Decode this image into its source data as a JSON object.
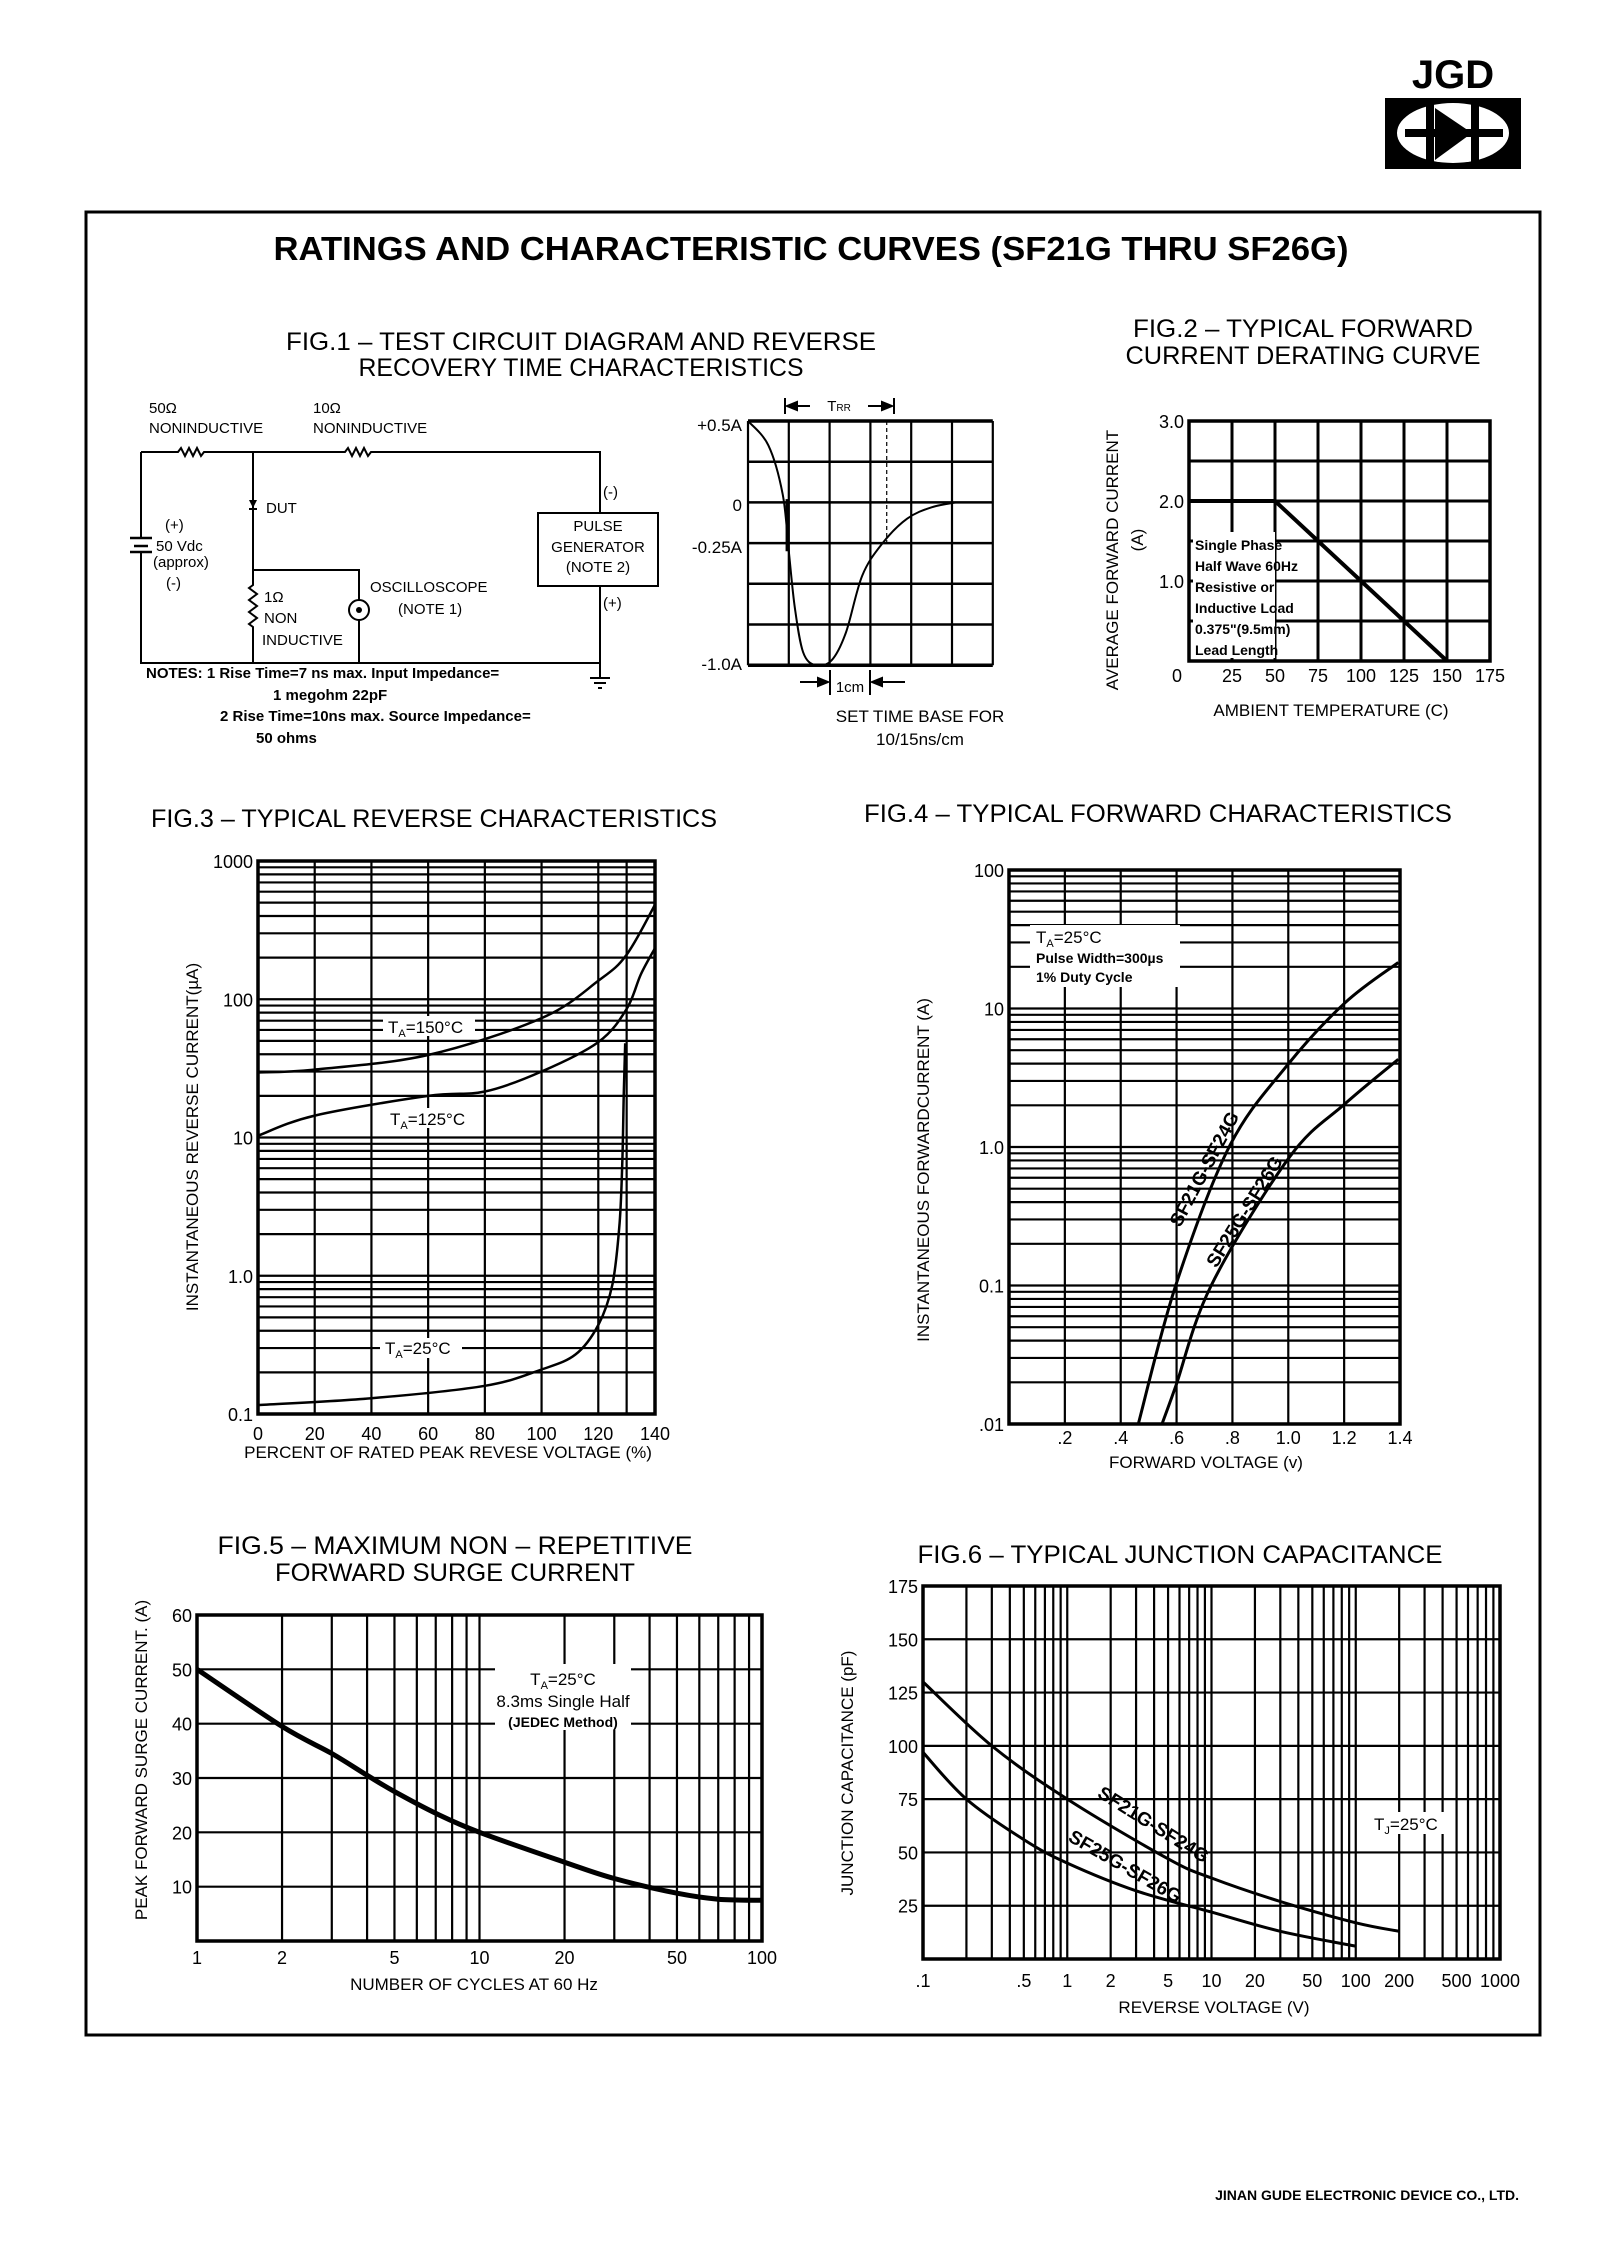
{
  "header": {
    "logo_text": "JGD",
    "title": "RATINGS AND CHARACTERISTIC CURVES",
    "title_paren": "(SF21G THRU SF26G)"
  },
  "footer": "JINAN GUDE ELECTRONIC DEVICE CO., LTD.",
  "fig1": {
    "title": [
      "FIG.1 – TEST CIRCUIT DIAGRAM AND REVERSE",
      "RECOVERY TIME CHARACTERISTICS"
    ],
    "r1_value": "50Ω",
    "r1_type": "NONINDUCTIVE",
    "r2_value": "10Ω",
    "r2_type": "NONINDUCTIVE",
    "dut": "DUT",
    "battery": [
      "(+)",
      "50 Vdc",
      "(approx)",
      "(-)"
    ],
    "r3": [
      "1Ω",
      "NON",
      "INDUCTIVE"
    ],
    "scope": [
      "OSCILLOSCOPE",
      "(NOTE 1)"
    ],
    "pulse": [
      "PULSE",
      "GENERATOR",
      "(NOTE 2)"
    ],
    "pulse_minus": "(-)",
    "pulse_plus": "(+)",
    "notes": [
      "NOTES: 1 Rise Time=7 ns max. Input Impedance=",
      "1 megohm 22pF",
      "2  Rise Time=10ns max. Source Impedance=",
      "50 ohms"
    ],
    "wave_labels": [
      "+0.5A",
      "0",
      "-0.25A",
      "-1.0A"
    ],
    "trr_t": "T",
    "trr_s": "RR",
    "cm": "1cm",
    "timebase": [
      "SET TIME BASE FOR",
      "10/15ns/cm"
    ]
  },
  "chart_data": [
    {
      "type": "line",
      "title": [
        "FIG.2 – TYPICAL FORWARD",
        "CURRENT DERATING CURVE"
      ],
      "xlabel": "AMBIENT TEMPERATURE (C)",
      "ylabel": [
        "AVERAGE FORWARD CURRENT",
        "(A)"
      ],
      "xscale": "linear",
      "yscale": "linear",
      "xlim": [
        0,
        175
      ],
      "ylim": [
        0,
        3
      ],
      "x_ticks": [
        0,
        25,
        50,
        75,
        100,
        125,
        150,
        175
      ],
      "x_tick_labels": [
        "0",
        "25",
        "50",
        "75",
        "100",
        "125",
        "150",
        "175"
      ],
      "y_ticks": [
        1,
        2,
        3
      ],
      "y_tick_labels": [
        "1.0",
        "2.0",
        "3.0"
      ],
      "grid": true,
      "series": [
        {
          "name": "Derating",
          "x": [
            0,
            50,
            150
          ],
          "y": [
            2.0,
            2.0,
            0
          ]
        }
      ],
      "annotation": [
        "Single Phase",
        "Half Wave 60Hz",
        "Resistive or",
        "Inductive Load",
        "0.375\"(9.5mm)",
        "Lead Length"
      ]
    },
    {
      "type": "line",
      "title": [
        "FIG.3 – TYPICAL REVERSE CHARACTERISTICS"
      ],
      "xlabel": "PERCENT OF RATED PEAK REVESE VOLTAGE (%)",
      "ylabel": [
        "INSTANTANEOUS REVERSE CURRENT(µA)"
      ],
      "xscale": "linear",
      "yscale": "log",
      "xlim": [
        0,
        140
      ],
      "ylim": [
        0.1,
        1000
      ],
      "x_ticks": [
        0,
        20,
        40,
        60,
        80,
        100,
        120,
        140
      ],
      "x_tick_labels": [
        "0",
        "20",
        "40",
        "60",
        "80",
        "100",
        "120",
        "140"
      ],
      "y_ticks": [
        0.1,
        1,
        10,
        100,
        1000
      ],
      "y_tick_labels": [
        "0.1",
        "1.0",
        "10",
        "100",
        "1000"
      ],
      "grid": true,
      "series": [
        {
          "name": "TA=150°C",
          "label_t": "T",
          "label_s": "A",
          "label_r": "=150°C",
          "x": [
            0,
            20,
            60,
            100,
            120,
            130,
            140
          ],
          "y": [
            29.5,
            31,
            39.5,
            73,
            136,
            210,
            483
          ]
        },
        {
          "name": "TA=125°C",
          "label_t": "T",
          "label_s": "A",
          "label_r": "=125°C",
          "x": [
            0,
            20,
            60,
            80,
            100,
            120,
            130,
            135,
            140
          ],
          "y": [
            10.3,
            14.4,
            20,
            21.5,
            30,
            49,
            85,
            151,
            234
          ]
        },
        {
          "name": "TA=25°C",
          "label_t": "T",
          "label_s": "A",
          "label_r": "=25°C",
          "x": [
            0,
            40,
            80,
            100,
            112,
            120,
            125,
            127.5,
            128.5,
            129,
            129.5
          ],
          "y": [
            0.116,
            0.13,
            0.16,
            0.21,
            0.27,
            0.44,
            0.87,
            2.4,
            7,
            21,
            48
          ]
        }
      ]
    },
    {
      "type": "line",
      "title": [
        "FIG.4 –  TYPICAL FORWARD CHARACTERISTICS"
      ],
      "xlabel": "FORWARD VOLTAGE (v)",
      "ylabel": [
        "INSTANTANEOUS FORWARDCURRENT (A)"
      ],
      "xscale": "linear",
      "yscale": "log",
      "xlim": [
        0,
        1.4
      ],
      "ylim": [
        0.01,
        100
      ],
      "x_ticks": [
        0.2,
        0.4,
        0.6,
        0.8,
        1.0,
        1.2,
        1.4
      ],
      "x_tick_labels": [
        ".2",
        ".4",
        ".6",
        ".8",
        "1.0",
        "1.2",
        "1.4"
      ],
      "y_ticks": [
        0.01,
        0.1,
        1,
        10,
        100
      ],
      "y_tick_labels": [
        ".01",
        "0.1",
        "1.0",
        "10",
        "100"
      ],
      "grid": true,
      "series": [
        {
          "name": "SF21G-SF24G",
          "x": [
            0.463,
            0.597,
            0.788,
            0.992,
            1.203,
            1.394
          ],
          "y": [
            0.01,
            0.1,
            1.0,
            3.8,
            11,
            21.5
          ]
        },
        {
          "name": "SF25G-SF26G",
          "x": [
            0.548,
            0.597,
            0.724,
            1.005,
            1.203,
            1.394
          ],
          "y": [
            0.01,
            0.0187,
            0.1,
            0.85,
            2.05,
            4.3
          ]
        }
      ],
      "annotation": {
        "t": "T",
        "s": "A",
        "r": "=25°C",
        "line2": "Pulse Width=300µs",
        "line3": "1% Duty Cycle"
      }
    },
    {
      "type": "line",
      "title": [
        "FIG.5 – MAXIMUM NON – REPETITIVE",
        "FORWARD SURGE CURRENT"
      ],
      "xlabel": "NUMBER OF CYCLES AT 60 Hz",
      "ylabel": [
        "PEAK FORWARD SURGE CURRENT. (A)"
      ],
      "xscale": "log",
      "yscale": "linear",
      "xlim": [
        1,
        100
      ],
      "ylim": [
        0,
        60
      ],
      "x_ticks": [
        1,
        2,
        5,
        10,
        20,
        50,
        100
      ],
      "x_tick_labels": [
        "1",
        "2",
        "5",
        "10",
        "20",
        "50",
        "100"
      ],
      "y_ticks": [
        10,
        20,
        30,
        40,
        50,
        60
      ],
      "y_tick_labels": [
        "10",
        "20",
        "30",
        "40",
        "50",
        "60"
      ],
      "grid": true,
      "series": [
        {
          "name": "Surge",
          "x": [
            1,
            2,
            3,
            4,
            5,
            7,
            10,
            20,
            30,
            50,
            70,
            100
          ],
          "y": [
            50,
            39.5,
            34.5,
            30.5,
            27.5,
            23.5,
            20,
            14.5,
            11.5,
            8.8,
            7.7,
            7.5
          ]
        }
      ],
      "annotation": {
        "t": "T",
        "s": "A",
        "r": "=25°C",
        "line2": "8.3ms Single Half",
        "line3": "(JEDEC Method)"
      }
    },
    {
      "type": "line",
      "title": [
        "FIG.6 – TYPICAL JUNCTION CAPACITANCE"
      ],
      "xlabel": "REVERSE VOLTAGE (V)",
      "ylabel": [
        "JUNCTION CAPACITANCE (pF)"
      ],
      "xscale": "log",
      "yscale": "linear",
      "xlim": [
        0.1,
        1000
      ],
      "ylim": [
        0,
        175
      ],
      "x_ticks": [
        0.1,
        0.5,
        1,
        2,
        5,
        10,
        20,
        50,
        100,
        200,
        500,
        1000
      ],
      "x_tick_labels": [
        ".1",
        ".5",
        "1",
        "2",
        "5",
        "10",
        "20",
        "50",
        "100",
        "200",
        "500",
        "1000"
      ],
      "y_ticks": [
        25,
        50,
        75,
        100,
        125,
        150,
        175
      ],
      "y_tick_labels": [
        "25",
        "50",
        "75",
        "100",
        "125",
        "150",
        "175"
      ],
      "grid": true,
      "series": [
        {
          "name": "SF21G-SF24G",
          "x": [
            0.1,
            0.3,
            1,
            5,
            10,
            30,
            100,
            200
          ],
          "y": [
            130,
            100,
            75,
            47,
            38,
            27,
            17,
            13
          ]
        },
        {
          "name": "SF25G-SF26G",
          "x": [
            0.1,
            0.2,
            0.5,
            1,
            3,
            10,
            30,
            100
          ],
          "y": [
            97,
            75,
            56,
            45,
            32,
            22,
            13,
            6
          ]
        }
      ],
      "annotation": {
        "t": "T",
        "s": "J",
        "r": "=25°C"
      }
    }
  ]
}
